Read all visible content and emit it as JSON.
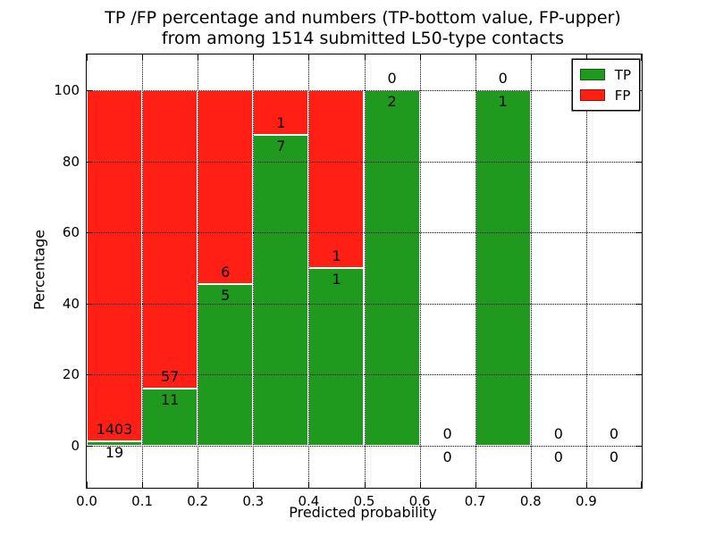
{
  "title_line1": "TP /FP percentage and numbers (TP-bottom value, FP-upper)",
  "title_line2": "from among 1514 submitted L50-type contacts",
  "axes": {
    "xlabel": "Predicted probability",
    "ylabel": "Percentage",
    "x_tick_values": [
      0,
      0.1,
      0.2,
      0.3,
      0.4,
      0.5,
      0.6,
      0.7,
      0.8,
      0.9,
      1.0
    ],
    "x_tick_labels": [
      "0.0",
      "0.1",
      "0.2",
      "0.3",
      "0.4",
      "0.5",
      "0.6",
      "0.7",
      "0.8",
      "0.9",
      ""
    ],
    "y_tick_values": [
      0,
      20,
      40,
      60,
      80,
      100
    ],
    "y_tick_labels": [
      "0",
      "20",
      "40",
      "60",
      "80",
      "100"
    ]
  },
  "legend": [
    {
      "label": "TP",
      "color": "#1f9a1e"
    },
    {
      "label": "FP",
      "color": "#ff1f14"
    }
  ],
  "colors": {
    "tp": "#1f9a1e",
    "fp": "#ff1f14",
    "grid": "#000000",
    "frame": "#000000",
    "background": "#ffffff"
  },
  "chart_data": {
    "type": "bar",
    "stacked": true,
    "title": "TP /FP percentage and numbers (TP-bottom value, FP-upper) from among 1514 submitted L50-type contacts",
    "xlabel": "Predicted probability",
    "ylabel": "Percentage",
    "total_contacts": 1514,
    "xlim": [
      0,
      1
    ],
    "ylim": [
      -11.8,
      110.1
    ],
    "grid": "dotted, drawn above bars",
    "legend_position": "upper right",
    "bin_width": 0.1,
    "bins": [
      {
        "x0": 0.0,
        "x1": 0.1,
        "tp": 19,
        "fp": 1403,
        "tp_pct": 1.3
      },
      {
        "x0": 0.1,
        "x1": 0.2,
        "tp": 11,
        "fp": 57,
        "tp_pct": 16.2
      },
      {
        "x0": 0.2,
        "x1": 0.3,
        "tp": 5,
        "fp": 6,
        "tp_pct": 45.5
      },
      {
        "x0": 0.3,
        "x1": 0.4,
        "tp": 7,
        "fp": 1,
        "tp_pct": 87.5
      },
      {
        "x0": 0.4,
        "x1": 0.5,
        "tp": 1,
        "fp": 1,
        "tp_pct": 50
      },
      {
        "x0": 0.5,
        "x1": 0.6,
        "tp": 2,
        "fp": 0,
        "tp_pct": 100
      },
      {
        "x0": 0.6,
        "x1": 0.7,
        "tp": 0,
        "fp": 0,
        "tp_pct": 0
      },
      {
        "x0": 0.7,
        "x1": 0.8,
        "tp": 1,
        "fp": 0,
        "tp_pct": 100
      },
      {
        "x0": 0.8,
        "x1": 0.9,
        "tp": 0,
        "fp": 0,
        "tp_pct": 0
      },
      {
        "x0": 0.9,
        "x1": 1.0,
        "tp": 0,
        "fp": 0,
        "tp_pct": 0
      }
    ]
  }
}
